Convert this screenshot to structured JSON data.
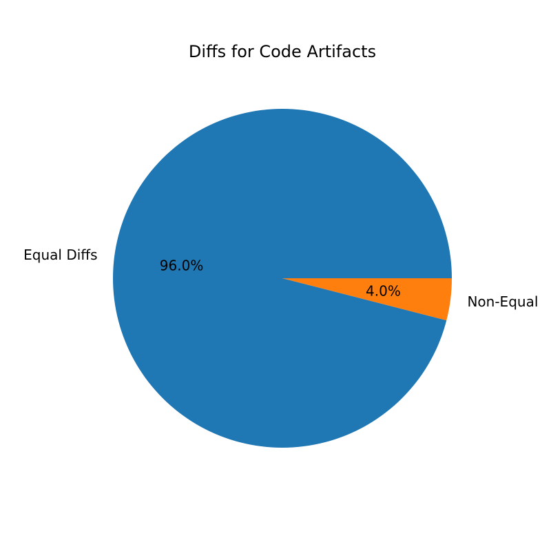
{
  "chart_data": {
    "type": "pie",
    "title": "Diffs for Code Artifacts",
    "categories": [
      "Equal Diffs",
      "Non-Equal"
    ],
    "values": [
      96.0,
      4.0
    ],
    "percent_labels": [
      "96.0%",
      "4.0%"
    ],
    "colors": [
      "#1f77b4",
      "#ff7f0e"
    ],
    "start_angle_deg": 0,
    "direction": "counterclockwise",
    "legend": "none"
  }
}
